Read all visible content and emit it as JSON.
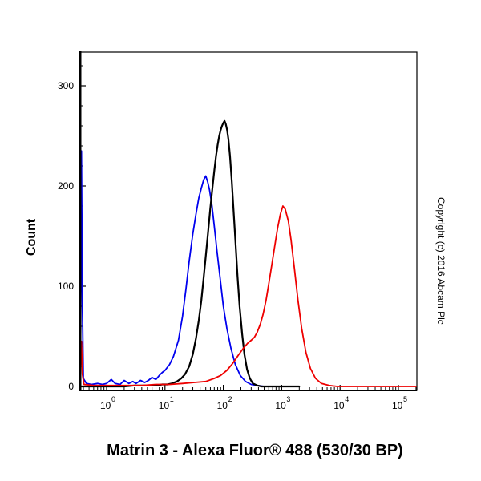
{
  "copyright": "Copyright (c) 2016 Abcam Plc",
  "chart_data": {
    "type": "line",
    "title": "",
    "xlabel": "Matrin 3 - Alexa Fluor® 488 (530/30 BP)",
    "ylabel": "Count",
    "x_scale": "log10",
    "x_range_log10": [
      -0.45,
      5.31
    ],
    "ylim": [
      0,
      338
    ],
    "y_major_ticks": [
      0,
      100,
      200,
      300
    ],
    "y_minor_step": 20,
    "x_tick_exponents": [
      0,
      1,
      2,
      3,
      4,
      5
    ],
    "grid": false,
    "legend": "none",
    "series": [
      {
        "name": "blue",
        "color": "#0000ee",
        "width": 1.8,
        "peak": {
          "x": 50,
          "count": 210
        },
        "points": [
          [
            0.352,
            0
          ],
          [
            0.36,
            60
          ],
          [
            0.37,
            235
          ],
          [
            0.385,
            80
          ],
          [
            0.4,
            8
          ],
          [
            0.45,
            3
          ],
          [
            0.55,
            2
          ],
          [
            0.7,
            3
          ],
          [
            0.85,
            2
          ],
          [
            1.0,
            3
          ],
          [
            1.2,
            7
          ],
          [
            1.4,
            3
          ],
          [
            1.7,
            2
          ],
          [
            2.0,
            6
          ],
          [
            2.4,
            3
          ],
          [
            2.8,
            5
          ],
          [
            3.2,
            3
          ],
          [
            3.8,
            6
          ],
          [
            4.5,
            4
          ],
          [
            5.2,
            6
          ],
          [
            6.0,
            9
          ],
          [
            7.0,
            7
          ],
          [
            8.0,
            11
          ],
          [
            9.0,
            14
          ],
          [
            10,
            16
          ],
          [
            12,
            22
          ],
          [
            14,
            30
          ],
          [
            17,
            46
          ],
          [
            20,
            70
          ],
          [
            23,
            98
          ],
          [
            26,
            125
          ],
          [
            30,
            152
          ],
          [
            34,
            172
          ],
          [
            38,
            188
          ],
          [
            42,
            198
          ],
          [
            46,
            206
          ],
          [
            50,
            210
          ],
          [
            54,
            204
          ],
          [
            58,
            196
          ],
          [
            64,
            180
          ],
          [
            70,
            160
          ],
          [
            78,
            135
          ],
          [
            88,
            108
          ],
          [
            100,
            80
          ],
          [
            115,
            58
          ],
          [
            135,
            38
          ],
          [
            160,
            22
          ],
          [
            195,
            11
          ],
          [
            240,
            5
          ],
          [
            300,
            2
          ],
          [
            380,
            1
          ],
          [
            500,
            0
          ],
          [
            1500,
            0
          ]
        ]
      },
      {
        "name": "black",
        "color": "#000000",
        "width": 2.2,
        "peak": {
          "x": 105,
          "count": 265
        },
        "points": [
          [
            0.352,
            0
          ],
          [
            0.5,
            0
          ],
          [
            1,
            0
          ],
          [
            2,
            0
          ],
          [
            3,
            1
          ],
          [
            5,
            1
          ],
          [
            7,
            1
          ],
          [
            9,
            2
          ],
          [
            11,
            2
          ],
          [
            13,
            3
          ],
          [
            16,
            5
          ],
          [
            19,
            8
          ],
          [
            22,
            12
          ],
          [
            26,
            20
          ],
          [
            30,
            32
          ],
          [
            34,
            48
          ],
          [
            38,
            66
          ],
          [
            42,
            86
          ],
          [
            46,
            108
          ],
          [
            50,
            130
          ],
          [
            55,
            155
          ],
          [
            60,
            178
          ],
          [
            65,
            198
          ],
          [
            70,
            215
          ],
          [
            75,
            230
          ],
          [
            80,
            241
          ],
          [
            85,
            250
          ],
          [
            90,
            256
          ],
          [
            95,
            260
          ],
          [
            100,
            263
          ],
          [
            105,
            265
          ],
          [
            110,
            262
          ],
          [
            116,
            256
          ],
          [
            122,
            247
          ],
          [
            130,
            230
          ],
          [
            140,
            204
          ],
          [
            150,
            175
          ],
          [
            162,
            142
          ],
          [
            175,
            110
          ],
          [
            190,
            80
          ],
          [
            210,
            52
          ],
          [
            230,
            32
          ],
          [
            255,
            17
          ],
          [
            285,
            8
          ],
          [
            320,
            3
          ],
          [
            380,
            1
          ],
          [
            450,
            0
          ],
          [
            2000,
            0
          ]
        ]
      },
      {
        "name": "red",
        "color": "#ee0000",
        "width": 1.8,
        "peak": {
          "x": 1050,
          "count": 180
        },
        "points": [
          [
            0.352,
            0
          ],
          [
            0.36,
            25
          ],
          [
            0.37,
            45
          ],
          [
            0.385,
            12
          ],
          [
            0.41,
            2
          ],
          [
            0.6,
            1
          ],
          [
            1,
            1
          ],
          [
            2,
            1
          ],
          [
            4,
            1
          ],
          [
            7,
            2
          ],
          [
            12,
            2
          ],
          [
            20,
            3
          ],
          [
            32,
            4
          ],
          [
            50,
            5
          ],
          [
            70,
            8
          ],
          [
            90,
            11
          ],
          [
            115,
            16
          ],
          [
            145,
            23
          ],
          [
            180,
            31
          ],
          [
            220,
            38
          ],
          [
            260,
            43
          ],
          [
            300,
            46
          ],
          [
            340,
            49
          ],
          [
            380,
            54
          ],
          [
            430,
            62
          ],
          [
            480,
            72
          ],
          [
            540,
            86
          ],
          [
            600,
            102
          ],
          [
            680,
            122
          ],
          [
            760,
            140
          ],
          [
            850,
            158
          ],
          [
            950,
            172
          ],
          [
            1050,
            180
          ],
          [
            1150,
            177
          ],
          [
            1300,
            165
          ],
          [
            1450,
            146
          ],
          [
            1650,
            118
          ],
          [
            1900,
            86
          ],
          [
            2200,
            58
          ],
          [
            2600,
            34
          ],
          [
            3100,
            18
          ],
          [
            3800,
            8
          ],
          [
            4800,
            3
          ],
          [
            6500,
            1
          ],
          [
            9000,
            0
          ],
          [
            200000,
            0
          ]
        ]
      }
    ]
  }
}
